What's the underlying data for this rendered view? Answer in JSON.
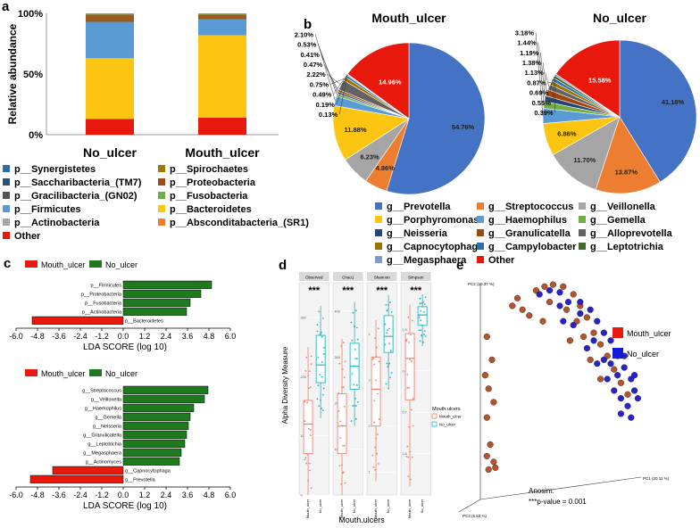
{
  "chart_data": [
    {
      "panel": "a",
      "type": "bar",
      "stacked": true,
      "ylabel": "Relative abundance",
      "y_ticks": [
        "0%",
        "50%",
        "100%"
      ],
      "categories": [
        "No_ulcer",
        "Mouth_ulcer"
      ],
      "series": [
        {
          "name": "Other",
          "color": "#e8180c",
          "values": [
            13,
            14
          ]
        },
        {
          "name": "p__Bacteroidetes",
          "color": "#fbc512",
          "values": [
            50,
            68
          ]
        },
        {
          "name": "p__Firmicutes",
          "color": "#5b9bd5",
          "values": [
            30,
            13
          ]
        },
        {
          "name": "p__Proteobacteria",
          "color": "#9c5b1e",
          "values": [
            6,
            4
          ]
        },
        {
          "name": "p__Fusobacteria",
          "color": "#70ad47",
          "values": [
            1,
            1
          ]
        }
      ],
      "legend": [
        {
          "label": "p__Synergistetes",
          "color": "#2e6da4"
        },
        {
          "label": "p__Spirochaetes",
          "color": "#9c7a00"
        },
        {
          "label": "p__Saccharibacteria_(TM7)",
          "color": "#2f4f6f"
        },
        {
          "label": "p__Proteobacteria",
          "color": "#9c4a1e"
        },
        {
          "label": "p__Gracilibacteria_(GN02)",
          "color": "#555555"
        },
        {
          "label": "p__Fusobacteria",
          "color": "#70ad47"
        },
        {
          "label": "p__Firmicutes",
          "color": "#5b9bd5"
        },
        {
          "label": "p__Bacteroidetes",
          "color": "#fbc512"
        },
        {
          "label": "p__Actinobacteria",
          "color": "#a6a6a6"
        },
        {
          "label": "p__Absconditabacteria_(SR1)",
          "color": "#ed7d31"
        },
        {
          "label": "Other",
          "color": "#e8180c"
        }
      ]
    },
    {
      "panel": "b",
      "type": "pie",
      "pies": [
        {
          "title": "Mouth_ulcer",
          "slices": [
            {
              "label": "Prevotella",
              "value": 54.76,
              "text": "54.76%"
            },
            {
              "label": "Streptococcus",
              "value": 4.86,
              "text": "4.86%"
            },
            {
              "label": "Veillonella",
              "value": 6.23,
              "text": "6.23%"
            },
            {
              "label": "Porphyromonas",
              "value": 11.88,
              "text": "11.88%"
            },
            {
              "label": "Haemophilus",
              "value": 2.1,
              "text": "2.10%"
            },
            {
              "label": "Gemella",
              "value": 0.53,
              "text": "0.53%"
            },
            {
              "label": "Neisseria",
              "value": 0.41,
              "text": "0.41%"
            },
            {
              "label": "Granulicatella",
              "value": 0.47,
              "text": "0.47%"
            },
            {
              "label": "Alloprevotella",
              "value": 2.22,
              "text": "2.22%"
            },
            {
              "label": "Capnocytophaga",
              "value": 0.75,
              "text": "0.75%"
            },
            {
              "label": "Campylobacter",
              "value": 0.49,
              "text": "0.49%"
            },
            {
              "label": "Leptotrichia",
              "value": 0.19,
              "text": "0.19%"
            },
            {
              "label": "Megasphaera",
              "value": 0.13,
              "text": "0.13%"
            },
            {
              "label": "Other",
              "value": 14.96,
              "text": "14.96%"
            }
          ]
        },
        {
          "title": "No_ulcer",
          "slices": [
            {
              "label": "Prevotella",
              "value": 41.18,
              "text": "41.18%"
            },
            {
              "label": "Streptococcus",
              "value": 13.87,
              "text": "13.87%"
            },
            {
              "label": "Veillonella",
              "value": 11.7,
              "text": "11.70%"
            },
            {
              "label": "Porphyromonas",
              "value": 6.86,
              "text": "6.86%"
            },
            {
              "label": "Haemophilus",
              "value": 3.18,
              "text": "3.18%"
            },
            {
              "label": "Gemella",
              "value": 1.44,
              "text": "1.44%"
            },
            {
              "label": "Neisseria",
              "value": 1.19,
              "text": "1.19%"
            },
            {
              "label": "Granulicatella",
              "value": 1.38,
              "text": "1.38%"
            },
            {
              "label": "Alloprevotella",
              "value": 1.13,
              "text": "1.13%"
            },
            {
              "label": "Capnocytophaga",
              "value": 0.87,
              "text": "0.87%"
            },
            {
              "label": "Campylobacter",
              "value": 0.69,
              "text": "0.69%"
            },
            {
              "label": "Leptotrichia",
              "value": 0.55,
              "text": "0.55%"
            },
            {
              "label": "Megasphaera",
              "value": 0.39,
              "text": "0.39%"
            },
            {
              "label": "Other",
              "value": 15.58,
              "text": "15.58%"
            }
          ]
        }
      ],
      "legend": [
        {
          "label": "g__Prevotella",
          "color": "#4472c4"
        },
        {
          "label": "g__Streptococcus",
          "color": "#ed7d31"
        },
        {
          "label": "g__Veillonella",
          "color": "#a5a5a5"
        },
        {
          "label": "g__Porphyromonas",
          "color": "#fbc512"
        },
        {
          "label": "g__Haemophilus",
          "color": "#5b9bd5"
        },
        {
          "label": "g__Gemella",
          "color": "#70ad47"
        },
        {
          "label": "g__Neisseria",
          "color": "#264478"
        },
        {
          "label": "g__Granulicatella",
          "color": "#9e480e"
        },
        {
          "label": "g__Alloprevotella",
          "color": "#636363"
        },
        {
          "label": "g__Capnocytophaga",
          "color": "#997300"
        },
        {
          "label": "g__Campylobacter",
          "color": "#2f6ea8"
        },
        {
          "label": "g__Leptotrichia",
          "color": "#43682b"
        },
        {
          "label": "g__Megasphaera",
          "color": "#7f9fc8"
        },
        {
          "label": "Other",
          "color": "#e8180c"
        }
      ]
    },
    {
      "panel": "c",
      "type": "bar",
      "orientation": "horizontal",
      "xlabel": "LDA SCORE (log 10)",
      "x_ticks": [
        "-6.0",
        "-4.8",
        "-3.6",
        "-2.4",
        "-1.2",
        "0.0",
        "1.2",
        "2.4",
        "3.6",
        "4.8",
        "6.0"
      ],
      "xlim": [
        -6.0,
        6.0
      ],
      "legend": [
        {
          "label": "Mouth_ulcer",
          "color": "#e8180c"
        },
        {
          "label": "No_ulcer",
          "color": "#1f7a1f"
        }
      ],
      "subplots": [
        {
          "bars": [
            {
              "label": "p__Firmicutes",
              "value": 4.95
            },
            {
              "label": "p__Proteobacteria",
              "value": 4.35
            },
            {
              "label": "p__Fusobacteria",
              "value": 3.75
            },
            {
              "label": "p__Actinobacteria",
              "value": 3.55
            },
            {
              "label": "p__Bacteroidetes",
              "value": -5.1
            }
          ]
        },
        {
          "bars": [
            {
              "label": "g__Streptococcus",
              "value": 4.75
            },
            {
              "label": "g__Veillonella",
              "value": 4.55
            },
            {
              "label": "g__Haemophilus",
              "value": 3.95
            },
            {
              "label": "g__Gemella",
              "value": 3.75
            },
            {
              "label": "g__Neisseria",
              "value": 3.65
            },
            {
              "label": "g__Granulicatella",
              "value": 3.55
            },
            {
              "label": "g__Leptotrichia",
              "value": 3.45
            },
            {
              "label": "g__Megasphaera",
              "value": 3.25
            },
            {
              "label": "g__Actinomyces",
              "value": 3.15
            },
            {
              "label": "g__Capnocytophaga",
              "value": -3.95
            },
            {
              "label": "g__Prevotella",
              "value": -5.2
            }
          ]
        }
      ]
    },
    {
      "panel": "d",
      "type": "box",
      "ylabel": "Alpha Diversity Measure",
      "xlabel": "Mouth.ulcers",
      "significance": "***",
      "legend_title": "Mouth.ulcers",
      "groups": [
        "Mouth_ulcer",
        "No_ulcer"
      ],
      "group_colors": [
        "#f08070",
        "#20b8c0"
      ],
      "facets": [
        {
          "name": "Observed",
          "ticks": [
            "0",
            "100",
            "200",
            "300"
          ],
          "ylim": [
            0,
            350
          ],
          "boxes": [
            {
              "q1": 70,
              "med": 120,
              "q3": 160,
              "wlo": 0,
              "whi": 250
            },
            {
              "q1": 190,
              "med": 220,
              "q3": 270,
              "wlo": 130,
              "whi": 320
            }
          ]
        },
        {
          "name": "Chao1",
          "ticks": [
            "100",
            "200",
            "300",
            "400"
          ],
          "ylim": [
            0,
            450
          ],
          "boxes": [
            {
              "q1": 90,
              "med": 150,
              "q3": 220,
              "wlo": 0,
              "whi": 340
            },
            {
              "q1": 230,
              "med": 280,
              "q3": 330,
              "wlo": 150,
              "whi": 420
            }
          ]
        },
        {
          "name": "Shannon",
          "ticks": [
            "1",
            "2",
            "3",
            "4"
          ],
          "ylim": [
            0.5,
            5
          ],
          "boxes": [
            {
              "q1": 2.0,
              "med": 2.8,
              "q3": 3.5,
              "wlo": 0.8,
              "whi": 4.3
            },
            {
              "q1": 3.6,
              "med": 3.95,
              "q3": 4.4,
              "wlo": 2.8,
              "whi": 4.85
            }
          ]
        },
        {
          "name": "Simpson",
          "ticks": [
            "0.6",
            "0.7",
            "0.8",
            "0.9"
          ],
          "ylim": [
            0.5,
            1.0
          ],
          "boxes": [
            {
              "q1": 0.73,
              "med": 0.83,
              "q3": 0.89,
              "wlo": 0.52,
              "whi": 0.96
            },
            {
              "q1": 0.91,
              "med": 0.935,
              "q3": 0.955,
              "wlo": 0.86,
              "whi": 0.985
            }
          ]
        }
      ],
      "x_labels": [
        "Mouth_ulcer",
        "No_ulcer"
      ]
    },
    {
      "panel": "e",
      "type": "scatter",
      "axis_labels": [
        "PC1 (20.11 %)",
        "PC2 (10.37 %)",
        "PC3 (6.53 %)"
      ],
      "legend": [
        {
          "label": "Mouth_ulcer",
          "color": "#e8180c"
        },
        {
          "label": "No_ulcer",
          "color": "#1418d8"
        }
      ],
      "annotation": [
        "Anosim:",
        "***p-value = 0.001"
      ],
      "series": [
        {
          "name": "Mouth_ulcer",
          "color": "#b5532a",
          "points": [
            [
              0.07,
              0.72
            ],
            [
              0.1,
              0.6
            ],
            [
              0.06,
              0.52
            ],
            [
              0.08,
              0.45
            ],
            [
              0.11,
              0.38
            ],
            [
              0.07,
              0.3
            ],
            [
              0.09,
              0.16
            ],
            [
              0.07,
              0.1
            ],
            [
              0.11,
              0.07
            ],
            [
              0.08,
              0.03
            ],
            [
              0.12,
              0.04
            ],
            [
              0.22,
              0.88
            ],
            [
              0.25,
              0.92
            ],
            [
              0.28,
              0.86
            ],
            [
              0.32,
              0.83
            ],
            [
              0.36,
              0.96
            ],
            [
              0.41,
              0.98
            ],
            [
              0.46,
              0.99
            ],
            [
              0.52,
              0.98
            ],
            [
              0.58,
              0.94
            ],
            [
              0.62,
              0.88
            ],
            [
              0.66,
              0.82
            ],
            [
              0.7,
              0.74
            ],
            [
              0.74,
              0.68
            ],
            [
              0.78,
              0.62
            ],
            [
              0.82,
              0.55
            ],
            [
              0.74,
              0.5
            ],
            [
              0.86,
              0.48
            ],
            [
              0.6,
              0.8
            ],
            [
              0.54,
              0.86
            ],
            [
              0.44,
              0.9
            ],
            [
              0.68,
              0.6
            ],
            [
              0.9,
              0.42
            ],
            [
              0.56,
              0.7
            ],
            [
              0.64,
              0.72
            ],
            [
              0.4,
              0.8
            ]
          ]
        },
        {
          "name": "No_ulcer",
          "color": "#2a22c8",
          "points": [
            [
              0.38,
              0.94
            ],
            [
              0.44,
              0.96
            ],
            [
              0.5,
              0.95
            ],
            [
              0.55,
              0.9
            ],
            [
              0.62,
              0.9
            ],
            [
              0.68,
              0.86
            ],
            [
              0.72,
              0.8
            ],
            [
              0.76,
              0.74
            ],
            [
              0.8,
              0.7
            ],
            [
              0.84,
              0.62
            ],
            [
              0.88,
              0.56
            ],
            [
              0.92,
              0.5
            ],
            [
              0.94,
              0.44
            ],
            [
              0.9,
              0.36
            ],
            [
              0.86,
              0.32
            ],
            [
              0.92,
              0.3
            ],
            [
              0.82,
              0.44
            ],
            [
              0.78,
              0.5
            ],
            [
              0.72,
              0.58
            ],
            [
              0.66,
              0.66
            ],
            [
              0.58,
              0.78
            ],
            [
              0.5,
              0.88
            ],
            [
              0.7,
              0.7
            ],
            [
              0.84,
              0.52
            ],
            [
              0.96,
              0.4
            ],
            [
              0.88,
              0.62
            ],
            [
              0.62,
              0.84
            ],
            [
              0.52,
              0.8
            ],
            [
              0.76,
              0.6
            ],
            [
              0.86,
              0.4
            ],
            [
              0.94,
              0.52
            ],
            [
              0.8,
              0.58
            ]
          ]
        }
      ]
    }
  ],
  "panel_letters": [
    "a",
    "b",
    "c",
    "d",
    "e"
  ],
  "colors": {
    "bar_pos": "#1f7a1f",
    "bar_neg": "#e8180c",
    "other": "#e8180c"
  }
}
